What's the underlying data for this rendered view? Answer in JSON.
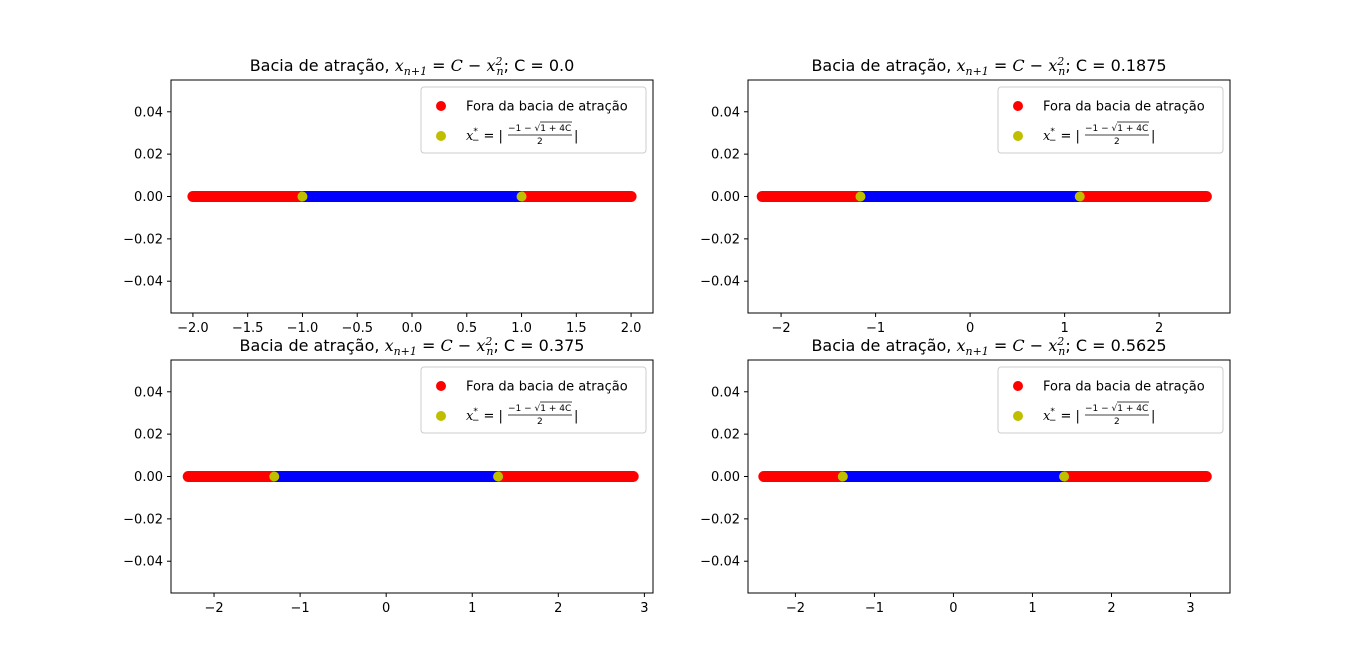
{
  "colors": {
    "outside": "#ff0000",
    "inside": "#0000ff",
    "fixed_point": "#bfbf00",
    "axes": "#000000",
    "legend_border": "#cccccc"
  },
  "chart_data": [
    {
      "type": "scatter",
      "title_prefix": "Bacia de atração, ",
      "title_suffix": "; C = 0.0",
      "legend": {
        "placement": "upper right",
        "entries": [
          "Fora da bacia de atração",
          "x_-^* = |(-1 - sqrt(1+4C))/2|"
        ]
      },
      "grid": false,
      "xlim": [
        -2.2,
        2.2
      ],
      "ylim": [
        -0.055,
        0.055
      ],
      "xticks": [
        -2.0,
        -1.5,
        -1.0,
        -0.5,
        0.0,
        0.5,
        1.0,
        1.5,
        2.0
      ],
      "xtick_labels": [
        "−2.0",
        "−1.5",
        "−1.0",
        "−0.5",
        "0.0",
        "0.5",
        "1.0",
        "1.5",
        "2.0"
      ],
      "yticks": [
        0.04,
        0.02,
        0.0,
        -0.02,
        -0.04
      ],
      "ytick_labels": [
        "0.04",
        "0.02",
        "0.00",
        "−0.02",
        "−0.04"
      ],
      "outside_ranges": [
        [
          -2.0,
          -1.0
        ],
        [
          1.0,
          2.0
        ]
      ],
      "inside_range": [
        -1.0,
        1.0
      ],
      "fixed_points": [
        -1.0,
        1.0
      ]
    },
    {
      "type": "scatter",
      "title_prefix": "Bacia de atração, ",
      "title_suffix": "; C = 0.1875",
      "legend": {
        "placement": "upper right",
        "entries": [
          "Fora da bacia de atração",
          "x_-^* = |(-1 - sqrt(1+4C))/2|"
        ]
      },
      "grid": false,
      "xlim": [
        -2.35,
        2.75
      ],
      "ylim": [
        -0.055,
        0.055
      ],
      "xticks": [
        -2,
        -1,
        0,
        1,
        2
      ],
      "xtick_labels": [
        "−2",
        "−1",
        "0",
        "1",
        "2"
      ],
      "yticks": [
        0.04,
        0.02,
        0.0,
        -0.02,
        -0.04
      ],
      "ytick_labels": [
        "0.04",
        "0.02",
        "0.00",
        "−0.02",
        "−0.04"
      ],
      "outside_ranges": [
        [
          -2.2,
          -1.16
        ],
        [
          1.16,
          2.5
        ]
      ],
      "inside_range": [
        -1.16,
        1.16
      ],
      "fixed_points": [
        -1.16,
        1.16
      ]
    },
    {
      "type": "scatter",
      "title_prefix": "Bacia de atração, ",
      "title_suffix": "; C = 0.375",
      "legend": {
        "placement": "upper right",
        "entries": [
          "Fora da bacia de atração",
          "x_-^* = |(-1 - sqrt(1+4C))/2|"
        ]
      },
      "grid": false,
      "xlim": [
        -2.5,
        3.1
      ],
      "ylim": [
        -0.055,
        0.055
      ],
      "xticks": [
        -2,
        -1,
        0,
        1,
        2,
        3
      ],
      "xtick_labels": [
        "−2",
        "−1",
        "0",
        "1",
        "2",
        "3"
      ],
      "yticks": [
        0.04,
        0.02,
        0.0,
        -0.02,
        -0.04
      ],
      "ytick_labels": [
        "0.04",
        "0.02",
        "0.00",
        "−0.02",
        "−0.04"
      ],
      "outside_ranges": [
        [
          -2.3,
          -1.3
        ],
        [
          1.3,
          2.87
        ]
      ],
      "inside_range": [
        -1.3,
        1.3
      ],
      "fixed_points": [
        -1.3,
        1.3
      ]
    },
    {
      "type": "scatter",
      "title_prefix": "Bacia de atração, ",
      "title_suffix": "; C = 0.5625",
      "legend": {
        "placement": "upper right",
        "entries": [
          "Fora da bacia de atração",
          "x_-^* = |(-1 - sqrt(1+4C))/2|"
        ]
      },
      "grid": false,
      "xlim": [
        -2.6,
        3.5
      ],
      "ylim": [
        -0.055,
        0.055
      ],
      "xticks": [
        -2,
        -1,
        0,
        1,
        2,
        3
      ],
      "xtick_labels": [
        "−2",
        "−1",
        "0",
        "1",
        "2",
        "3"
      ],
      "yticks": [
        0.04,
        0.02,
        0.0,
        -0.02,
        -0.04
      ],
      "ytick_labels": [
        "0.04",
        "0.02",
        "0.00",
        "−0.02",
        "−0.04"
      ],
      "outside_ranges": [
        [
          -2.4,
          -1.4
        ],
        [
          1.4,
          3.2
        ]
      ],
      "inside_range": [
        -1.4,
        1.4
      ],
      "fixed_points": [
        -1.4,
        1.4
      ]
    }
  ]
}
